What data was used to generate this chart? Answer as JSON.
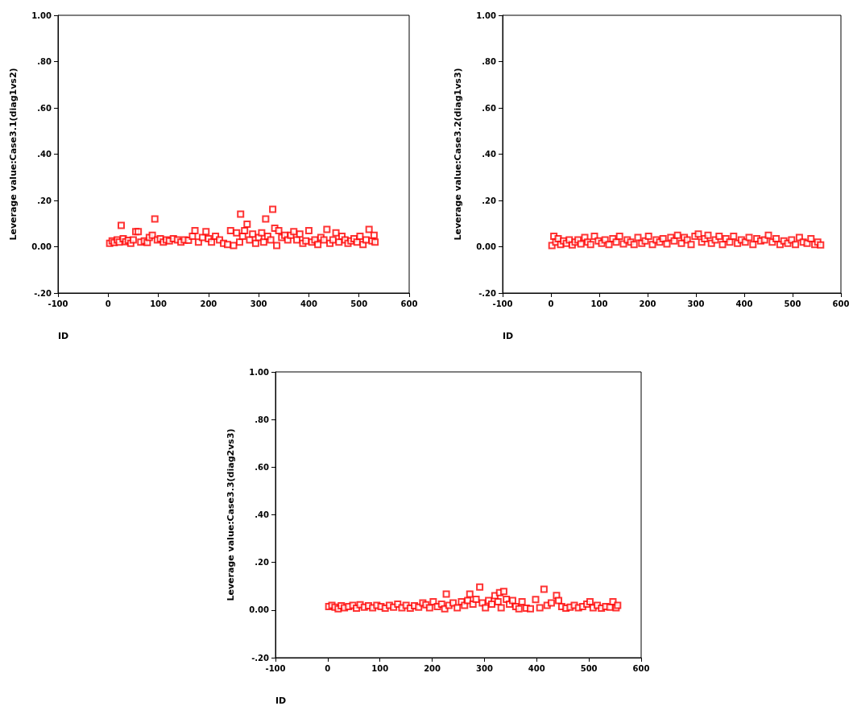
{
  "chart_data": [
    {
      "type": "scatter",
      "xlabel": "ID",
      "ylabel": "Leverage value:Case3.1(diag1vs2)",
      "marker": "square",
      "grid": false,
      "xlim": [
        -100,
        600
      ],
      "xticks": [
        -100,
        0,
        100,
        200,
        300,
        400,
        500,
        600
      ],
      "ylim": [
        -0.2,
        1.0
      ],
      "yticks": [
        {
          "value": -0.2,
          "label": "-.20"
        },
        {
          "value": 0,
          "label": "0.00"
        },
        {
          "value": 0.2,
          "label": ".20"
        },
        {
          "value": 0.4,
          "label": ".40"
        },
        {
          "value": 0.6,
          "label": ".60"
        },
        {
          "value": 0.8,
          "label": ".80"
        },
        {
          "value": 1.0,
          "label": "1.00"
        }
      ],
      "series": [
        {
          "color": "#ff0000",
          "x": [
            3,
            8,
            12,
            18,
            22,
            26,
            30,
            35,
            40,
            45,
            50,
            55,
            60,
            65,
            72,
            78,
            82,
            88,
            93,
            98,
            104,
            110,
            116,
            122,
            130,
            138,
            145,
            152,
            160,
            168,
            173,
            180,
            188,
            195,
            200,
            206,
            214,
            222,
            230,
            238,
            244,
            250,
            256,
            262,
            264,
            268,
            272,
            277,
            282,
            288,
            294,
            300,
            306,
            310,
            314,
            318,
            324,
            328,
            332,
            336,
            340,
            346,
            352,
            358,
            364,
            370,
            376,
            382,
            388,
            394,
            400,
            406,
            412,
            418,
            424,
            430,
            436,
            442,
            448,
            454,
            460,
            466,
            472,
            478,
            484,
            490,
            496,
            502,
            508,
            514,
            520,
            526,
            530,
            532
          ],
          "values": [
            0.015,
            0.025,
            0.018,
            0.03,
            0.02,
            0.092,
            0.035,
            0.022,
            0.028,
            0.015,
            0.03,
            0.065,
            0.065,
            0.02,
            0.025,
            0.018,
            0.04,
            0.05,
            0.12,
            0.03,
            0.035,
            0.02,
            0.03,
            0.025,
            0.035,
            0.03,
            0.02,
            0.03,
            0.028,
            0.045,
            0.07,
            0.02,
            0.04,
            0.065,
            0.035,
            0.02,
            0.045,
            0.03,
            0.015,
            0.01,
            0.07,
            0.005,
            0.06,
            0.02,
            0.141,
            0.045,
            0.07,
            0.097,
            0.03,
            0.055,
            0.015,
            0.04,
            0.06,
            0.02,
            0.12,
            0.045,
            0.03,
            0.162,
            0.08,
            0.005,
            0.07,
            0.04,
            0.05,
            0.03,
            0.05,
            0.065,
            0.03,
            0.055,
            0.015,
            0.025,
            0.07,
            0.02,
            0.03,
            0.01,
            0.04,
            0.03,
            0.075,
            0.015,
            0.03,
            0.06,
            0.02,
            0.045,
            0.03,
            0.015,
            0.025,
            0.035,
            0.02,
            0.045,
            0.01,
            0.03,
            0.075,
            0.025,
            0.05,
            0.02
          ]
        }
      ]
    },
    {
      "type": "scatter",
      "xlabel": "ID",
      "ylabel": "Leverage value:Case3.2(diag1vs3)",
      "marker": "square",
      "grid": false,
      "xlim": [
        -100,
        600
      ],
      "xticks": [
        -100,
        0,
        100,
        200,
        300,
        400,
        500,
        600
      ],
      "ylim": [
        -0.2,
        1.0
      ],
      "yticks": [
        {
          "value": -0.2,
          "label": "-.20"
        },
        {
          "value": 0,
          "label": "0.00"
        },
        {
          "value": 0.2,
          "label": ".20"
        },
        {
          "value": 0.4,
          "label": ".40"
        },
        {
          "value": 0.6,
          "label": ".60"
        },
        {
          "value": 0.8,
          "label": ".80"
        },
        {
          "value": 1.0,
          "label": "1.00"
        }
      ],
      "series": [
        {
          "color": "#ff0000",
          "x": [
            2,
            6,
            10,
            15,
            20,
            26,
            32,
            38,
            44,
            50,
            56,
            62,
            70,
            76,
            82,
            90,
            98,
            105,
            112,
            120,
            128,
            135,
            142,
            150,
            158,
            165,
            172,
            180,
            188,
            195,
            202,
            210,
            218,
            225,
            232,
            240,
            248,
            255,
            262,
            270,
            276,
            282,
            290,
            298,
            305,
            312,
            318,
            325,
            332,
            340,
            348,
            355,
            362,
            370,
            378,
            386,
            394,
            402,
            410,
            418,
            426,
            434,
            442,
            450,
            458,
            466,
            474,
            482,
            490,
            498,
            506,
            514,
            522,
            530,
            538,
            546,
            552,
            558
          ],
          "values": [
            0.005,
            0.045,
            0.02,
            0.035,
            0.01,
            0.025,
            0.015,
            0.03,
            0.008,
            0.02,
            0.03,
            0.012,
            0.04,
            0.02,
            0.01,
            0.045,
            0.025,
            0.015,
            0.03,
            0.01,
            0.035,
            0.02,
            0.045,
            0.012,
            0.03,
            0.02,
            0.01,
            0.04,
            0.015,
            0.025,
            0.045,
            0.01,
            0.03,
            0.02,
            0.035,
            0.012,
            0.04,
            0.025,
            0.05,
            0.015,
            0.04,
            0.03,
            0.01,
            0.045,
            0.055,
            0.02,
            0.035,
            0.05,
            0.015,
            0.03,
            0.045,
            0.01,
            0.035,
            0.02,
            0.045,
            0.015,
            0.03,
            0.02,
            0.04,
            0.01,
            0.035,
            0.025,
            0.03,
            0.05,
            0.02,
            0.035,
            0.01,
            0.025,
            0.015,
            0.03,
            0.01,
            0.04,
            0.02,
            0.015,
            0.035,
            0.01,
            0.02,
            0.008
          ]
        }
      ]
    },
    {
      "type": "scatter",
      "xlabel": "ID",
      "ylabel": "Leverage value:Case3.3(diag2vs3)",
      "marker": "square",
      "grid": false,
      "xlim": [
        -100,
        600
      ],
      "xticks": [
        -100,
        0,
        100,
        200,
        300,
        400,
        500,
        600
      ],
      "ylim": [
        -0.2,
        1.0
      ],
      "yticks": [
        {
          "value": -0.2,
          "label": "-.20"
        },
        {
          "value": 0,
          "label": "0.00"
        },
        {
          "value": 0.2,
          "label": ".20"
        },
        {
          "value": 0.4,
          "label": ".40"
        },
        {
          "value": 0.6,
          "label": ".60"
        },
        {
          "value": 0.8,
          "label": ".80"
        },
        {
          "value": 1.0,
          "label": "1.00"
        }
      ],
      "series": [
        {
          "color": "#ff0000",
          "x": [
            2,
            8,
            14,
            20,
            26,
            32,
            40,
            48,
            55,
            62,
            70,
            78,
            86,
            94,
            102,
            110,
            118,
            126,
            134,
            142,
            150,
            158,
            166,
            174,
            182,
            188,
            195,
            202,
            210,
            218,
            224,
            227,
            232,
            240,
            248,
            256,
            262,
            268,
            272,
            278,
            284,
            291,
            296,
            302,
            308,
            314,
            320,
            326,
            329,
            332,
            337,
            342,
            348,
            354,
            360,
            366,
            372,
            380,
            388,
            398,
            406,
            414,
            420,
            428,
            438,
            442,
            448,
            456,
            464,
            472,
            480,
            488,
            496,
            502,
            508,
            516,
            524,
            532,
            540,
            546,
            552,
            555
          ],
          "values": [
            0.015,
            0.02,
            0.012,
            0.005,
            0.018,
            0.01,
            0.015,
            0.02,
            0.008,
            0.022,
            0.012,
            0.018,
            0.01,
            0.02,
            0.015,
            0.008,
            0.02,
            0.012,
            0.025,
            0.01,
            0.02,
            0.008,
            0.018,
            0.012,
            0.03,
            0.022,
            0.01,
            0.035,
            0.015,
            0.025,
            0.005,
            0.067,
            0.02,
            0.03,
            0.01,
            0.035,
            0.02,
            0.04,
            0.067,
            0.025,
            0.045,
            0.097,
            0.03,
            0.01,
            0.04,
            0.025,
            0.06,
            0.035,
            0.073,
            0.01,
            0.078,
            0.045,
            0.025,
            0.04,
            0.015,
            0.005,
            0.035,
            0.008,
            0.005,
            0.044,
            0.01,
            0.087,
            0.02,
            0.03,
            0.061,
            0.04,
            0.015,
            0.008,
            0.012,
            0.02,
            0.01,
            0.015,
            0.025,
            0.035,
            0.01,
            0.02,
            0.008,
            0.015,
            0.012,
            0.035,
            0.01,
            0.02
          ]
        }
      ]
    }
  ]
}
